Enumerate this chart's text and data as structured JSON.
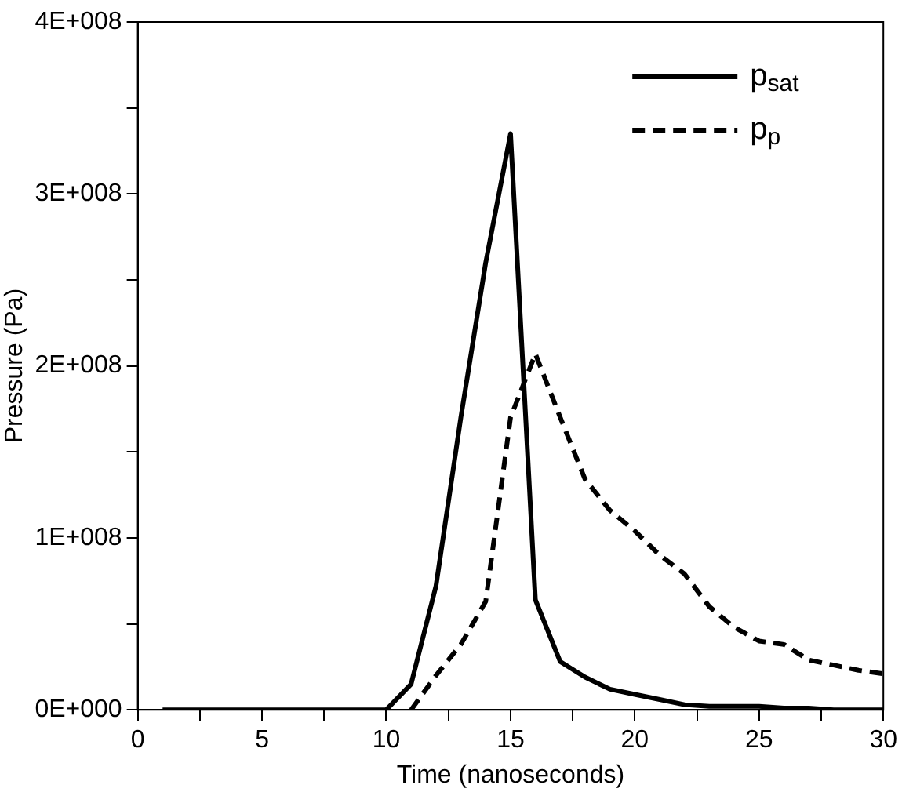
{
  "chart_data": {
    "type": "line",
    "xlabel": "Time (nanoseconds)",
    "ylabel": "Pressure (Pa)",
    "xlim": [
      0,
      30
    ],
    "xticks": [
      0,
      {
        "value": 2.5,
        "label": null
      },
      5,
      {
        "value": 7.5,
        "label": null
      },
      10,
      {
        "value": 12.5,
        "label": null
      },
      15,
      {
        "value": 17.5,
        "label": null
      },
      20,
      {
        "value": 22.5,
        "label": null
      },
      25,
      {
        "value": 27.5,
        "label": null
      },
      30
    ],
    "ylim": [
      0,
      400000000
    ],
    "yticks": [
      {
        "value": 0,
        "label": "0E+000"
      },
      {
        "value": 50000000,
        "label": null
      },
      {
        "value": 100000000,
        "label": "1E+008"
      },
      {
        "value": 150000000,
        "label": null
      },
      {
        "value": 200000000,
        "label": "2E+008"
      },
      {
        "value": 250000000,
        "label": null
      },
      {
        "value": 300000000,
        "label": "3E+008"
      },
      {
        "value": 350000000,
        "label": null
      },
      {
        "value": 400000000,
        "label": "4E+008"
      }
    ],
    "grid": false,
    "legend": "top right",
    "marker": "none",
    "series": [
      {
        "name": "p$_{sat}$",
        "color": "#000000",
        "line_style": "solid",
        "x": [
          1,
          10,
          11,
          12,
          13,
          14,
          15,
          16,
          17,
          18,
          19,
          20,
          21,
          22,
          23,
          24,
          25,
          26,
          27,
          28,
          29,
          30
        ],
        "values": [
          0,
          0,
          15000000,
          72000000,
          170000000,
          260000000,
          335000000,
          64000000,
          28000000,
          19000000,
          12000000,
          9000000,
          6000000,
          3000000,
          2000000,
          2000000,
          2000000,
          1000000,
          1000000,
          0,
          0,
          0
        ]
      },
      {
        "name": "p$_{p}$",
        "color": "#000000",
        "line_style": "dashed",
        "x": [
          11,
          12,
          13,
          14,
          15,
          16,
          17,
          18,
          19,
          20,
          21,
          22,
          23,
          24,
          25,
          26,
          27,
          28,
          29,
          30
        ],
        "values": [
          0,
          20000000,
          38000000,
          63000000,
          170000000,
          207000000,
          170000000,
          134000000,
          116000000,
          104000000,
          90000000,
          79000000,
          60000000,
          48000000,
          40000000,
          38000000,
          29000000,
          26000000,
          23000000,
          21000000
        ]
      }
    ]
  }
}
